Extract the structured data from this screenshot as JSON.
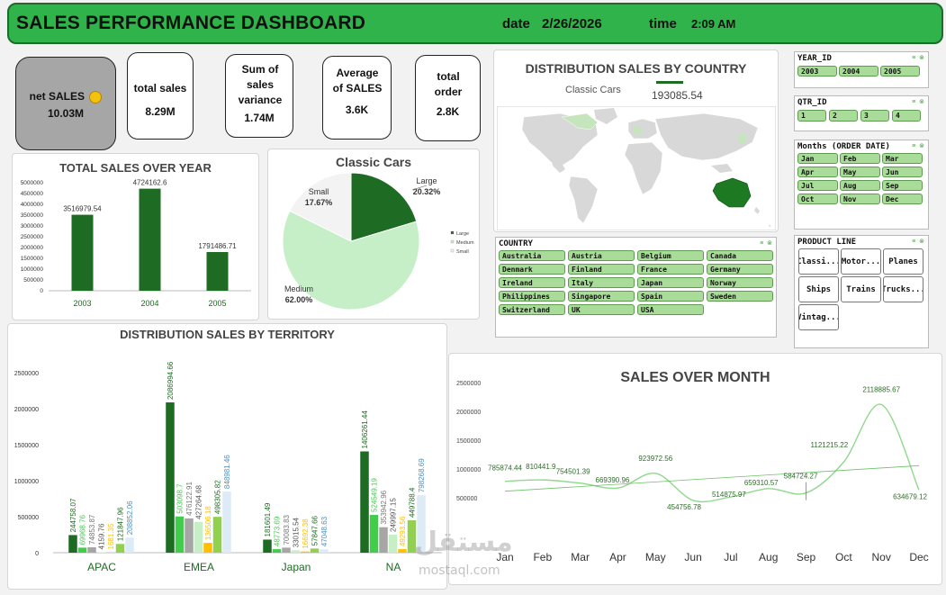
{
  "header": {
    "title": "SALES PERFORMANCE DASHBOARD",
    "date_label": "date",
    "date_value": "2/26/2026",
    "time_label": "time",
    "time_value": "2:09 AM"
  },
  "kpis": [
    {
      "label": "net SALES",
      "value": "10.03M"
    },
    {
      "label": "total sales",
      "value": "8.29M"
    },
    {
      "label": "Sum of sales variance",
      "value": "1.74M"
    },
    {
      "label": "Average of SALES",
      "value": "3.6K"
    },
    {
      "label": "total order",
      "value": "2.8K"
    }
  ],
  "colors": {
    "dark_green": "#1e6b23",
    "mid_green": "#3fcd4a",
    "light_green": "#c6efc8",
    "gray": "#a6a6a6",
    "yellow_green": "#92d050",
    "gold": "#ffc000",
    "light_blue": "#ddebf7",
    "header_green": "#2fb34a"
  },
  "year_chart": {
    "title": "TOTAL SALES OVER YEAR",
    "chart_data": {
      "type": "bar",
      "categories": [
        "2003",
        "2004",
        "2005"
      ],
      "values": [
        3516979.54,
        4724162.6,
        1791486.71
      ],
      "value_labels": [
        "3516979.54",
        "4724162.6",
        "1791486.71"
      ],
      "yticks": [
        "5000000",
        "4500000",
        "4000000",
        "3500000",
        "3000000",
        "2500000",
        "2000000",
        "1500000",
        "1000000",
        "500000",
        "0"
      ],
      "ylim": [
        0,
        5000000
      ]
    }
  },
  "pie_chart": {
    "title": "Classic Cars",
    "chart_data": {
      "type": "pie",
      "slices": [
        {
          "name": "Large",
          "value": 20.32,
          "label": "20.32%"
        },
        {
          "name": "Medium",
          "value": 62.0,
          "label": "62.00%"
        },
        {
          "name": "Small",
          "value": 17.67,
          "label": "17.67%"
        }
      ],
      "legend": [
        "Large",
        "Medium",
        "Small"
      ]
    }
  },
  "map": {
    "title": "DISTRIBUTION SALES BY COUNTRY",
    "legend_series": "Classic Cars",
    "legend_value": "193085.54"
  },
  "country_slicer": {
    "title": "COUNTRY",
    "items": [
      "Australia",
      "Austria",
      "Belgium",
      "Canada",
      "Denmark",
      "Finland",
      "France",
      "Germany",
      "Ireland",
      "Italy",
      "Japan",
      "Norway",
      "Philippines",
      "Singapore",
      "Spain",
      "Sweden",
      "Switzerland",
      "UK",
      "USA"
    ]
  },
  "year_slicer": {
    "title": "YEAR_ID",
    "items": [
      "2003",
      "2004",
      "2005"
    ]
  },
  "qtr_slicer": {
    "title": "QTR_ID",
    "items": [
      "1",
      "2",
      "3",
      "4"
    ]
  },
  "month_slicer": {
    "title": "Months (ORDER DATE)",
    "items": [
      "Jan",
      "Feb",
      "Mar",
      "Apr",
      "May",
      "Jun",
      "Jul",
      "Aug",
      "Sep",
      "Oct",
      "Nov",
      "Dec"
    ]
  },
  "product_slicer": {
    "title": "PRODUCT LINE",
    "items": [
      "Classi...",
      "Motor...",
      "Planes",
      "Ships",
      "Trains",
      "Trucks...",
      "Vintag..."
    ]
  },
  "territory_chart": {
    "title": "DISTRIBUTION  SALES BY TERRITORY",
    "chart_data": {
      "type": "bar",
      "categories": [
        "APAC",
        "EMEA",
        "Japan",
        "NA"
      ],
      "series": [
        {
          "values": [
            244758.07,
            2086994.66,
            181601.49,
            1406261.44
          ],
          "labels": [
            "244758.07",
            "2086994.66",
            "181601.49",
            "1406261.44"
          ]
        },
        {
          "values": [
            69968.76,
            503098.7,
            48773.69,
            524549.19
          ],
          "labels": [
            "69968.76",
            "503098.7",
            "48773.69",
            "524549.19"
          ]
        },
        {
          "values": [
            74853.87,
            476122.91,
            70083.83,
            353942.96
          ],
          "labels": [
            "74853.87",
            "476122.91",
            "70083.83",
            "353942.96"
          ]
        },
        {
          "values": [
            4159.76,
            427264.68,
            33015.54,
            249997.15
          ],
          "labels": [
            "4159.76",
            "427264.68",
            "33015.54",
            "249997.15"
          ]
        },
        {
          "values": [
            1681.35,
            136506.18,
            16692.38,
            49293.56
          ],
          "labels": [
            "1681.35",
            "136506.18",
            "16692.38",
            "49293.56"
          ]
        },
        {
          "values": [
            121847.96,
            498305.82,
            57847.66,
            449788.4
          ],
          "labels": [
            "121847.96",
            "498305.82",
            "57847.66",
            "449788.4"
          ]
        },
        {
          "values": [
            208852.06,
            848981.46,
            47048.63,
            798268.69
          ],
          "labels": [
            "208852.06",
            "848981.46",
            "47048.63",
            "798268.69"
          ]
        }
      ],
      "yticks": [
        "2500000",
        "2000000",
        "1500000",
        "1000000",
        "500000",
        "0"
      ],
      "ylim": [
        0,
        2500000
      ]
    }
  },
  "month_chart": {
    "title": "SALES OVER MONTH",
    "chart_data": {
      "type": "line",
      "categories": [
        "Jan",
        "Feb",
        "Mar",
        "Apr",
        "May",
        "Jun",
        "Jul",
        "Aug",
        "Sep",
        "Oct",
        "Nov",
        "Dec"
      ],
      "values": [
        785874.44,
        810441.9,
        754501.39,
        669390.96,
        923972.56,
        454756.78,
        514875.97,
        659310.57,
        584724.27,
        1121215.22,
        2118885.67,
        634679.12
      ],
      "labels": [
        "785874.44",
        "810441.9",
        "754501.39",
        "669390.96",
        "923972.56",
        "454756.78",
        "514875.97",
        "659310.57",
        "584724.27",
        "1121215.22",
        "2118885.67",
        "634679.12"
      ],
      "yticks": [
        "2500000",
        "2000000",
        "1500000",
        "1000000",
        "500000"
      ],
      "ylim": [
        0,
        2500000
      ],
      "trendline": true
    }
  },
  "watermark": {
    "arabic": "مستقل",
    "latin": "mostaql.com"
  }
}
